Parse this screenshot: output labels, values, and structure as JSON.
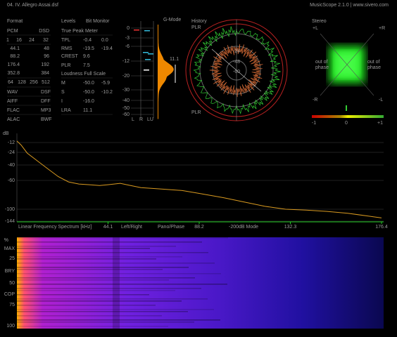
{
  "header": {
    "file": "04. IV. Allegro Assai.dsf",
    "app": "MusicScope 2.1.0 | www.sivero.com"
  },
  "format": {
    "title": "Format",
    "pcm": "PCM",
    "dsd": "DSD",
    "bits": [
      "1",
      "16",
      "24",
      "32"
    ],
    "rates": [
      [
        "44.1",
        "48"
      ],
      [
        "88.2",
        "96"
      ],
      [
        "176.4",
        "192"
      ],
      [
        "352.8",
        "384"
      ]
    ],
    "dsd_rates": [
      "64",
      "128",
      "256",
      "512"
    ],
    "containers": [
      [
        "WAV",
        "DSF"
      ],
      [
        "AIFF",
        "DFF"
      ],
      [
        "FLAC",
        "MP3"
      ],
      [
        "ALAC",
        "BWF"
      ]
    ]
  },
  "levels": {
    "title": "Levels",
    "bit_monitor": "Bit Monitor",
    "true_peak": "True Peak Meter",
    "peak_rows": [
      [
        "TPL",
        "-0.4",
        "0.0"
      ],
      [
        "RMS",
        "-19.5",
        "-19.4"
      ],
      [
        "CREST",
        "9.6"
      ],
      [
        "PLR",
        "7.5"
      ]
    ],
    "loudness": "Loudness Full Scale",
    "loudness_rows": [
      [
        "M",
        "-50.0",
        "-5.9"
      ],
      [
        "S",
        "-50.0",
        "-10.2"
      ],
      [
        "I",
        "-16.0"
      ],
      [
        "LRA",
        "11.1"
      ]
    ]
  },
  "meter": {
    "scale": [
      "0",
      "-3",
      "-6",
      "-12",
      "-20",
      "-30",
      "-40",
      "-50",
      "-60"
    ],
    "mode": "G-Mode",
    "lra": "11.1",
    "channels": [
      "L",
      "R",
      "LU"
    ]
  },
  "history": {
    "title": "History",
    "top": "PLR",
    "bottom": "PLR",
    "rings": [
      "-24",
      "-48",
      "-60"
    ]
  },
  "stereo": {
    "title": "Stereo",
    "corners": [
      "+L",
      "+R",
      "-R",
      "-L"
    ],
    "phase": [
      "out of",
      "phase"
    ],
    "scale": [
      "-1",
      "0",
      "+1"
    ]
  },
  "spectrum": {
    "type": "line",
    "title": "Linear Frequency Spectrum [kHz]",
    "y_label": "dB",
    "modes": [
      "Left/Right",
      "Pano/Phase",
      "-200dB Mode"
    ],
    "color": "#d99a20",
    "x": [
      0,
      2,
      5,
      10,
      15,
      20,
      25,
      30,
      35,
      40,
      44,
      50,
      55,
      60,
      70,
      80,
      88,
      100,
      110,
      120,
      130,
      140,
      150,
      160,
      170,
      176.4
    ],
    "values": [
      -10,
      -15,
      -25,
      -35,
      -45,
      -55,
      -62,
      -65,
      -66,
      -67,
      -66,
      -64,
      -67,
      -70,
      -72,
      -74,
      -78,
      -84,
      -90,
      -96,
      -100,
      -103,
      -108,
      -115,
      -125,
      -132
    ],
    "xlim": [
      0,
      176.4
    ],
    "xticks": [
      44.1,
      88.2,
      132.3,
      176.4
    ],
    "ylim": [
      -144,
      0
    ],
    "yticks": [
      -12,
      -24,
      -40,
      -60,
      -100,
      -144
    ]
  },
  "spectrogram": {
    "unit": "%",
    "ticks": [
      "25",
      "50",
      "75",
      "100"
    ],
    "markers": [
      "MAX",
      "BRY",
      "COP"
    ]
  }
}
